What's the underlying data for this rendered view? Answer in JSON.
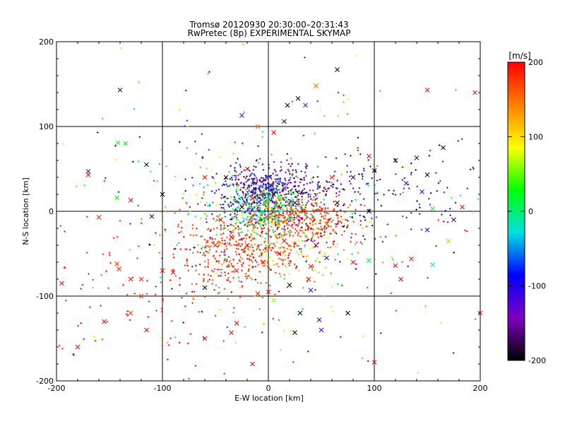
{
  "chart_data": {
    "type": "scatter",
    "title": "Tromsø 20120930 20:30:00–20:31:43",
    "subtitle": "RwPretec (8p) EXPERIMENTAL SKYMAP",
    "xlabel": "E-W location [km]",
    "ylabel": "N-S location [km]",
    "xlim": [
      -200,
      200
    ],
    "ylim": [
      -200,
      200
    ],
    "x_ticks": [
      -200,
      -100,
      0,
      100,
      200
    ],
    "y_ticks": [
      -200,
      -100,
      0,
      100,
      200
    ],
    "grid": true,
    "colorbar": {
      "label": "[m/s]",
      "range": [
        -200,
        200
      ],
      "ticks": [
        200,
        100,
        0,
        -100,
        -200
      ],
      "colors": [
        "#000000",
        "#8000c0",
        "#0000ff",
        "#00e0e0",
        "#00ff00",
        "#ffff00",
        "#ff8000",
        "#ff0000"
      ]
    },
    "series": [
      {
        "marker": "cross",
        "points": [
          [
            -140,
            143,
            -180
          ],
          [
            -115,
            55,
            -190
          ],
          [
            -142,
            81,
            20
          ],
          [
            -135,
            80,
            30
          ],
          [
            -170,
            47,
            -110
          ],
          [
            -170,
            43,
            200
          ],
          [
            -160,
            -7,
            190
          ],
          [
            -143,
            16,
            30
          ],
          [
            -130,
            13,
            200
          ],
          [
            -195,
            -85,
            200
          ],
          [
            -143,
            -62,
            180
          ],
          [
            -141,
            -68,
            190
          ],
          [
            -130,
            -80,
            200
          ],
          [
            -120,
            -80,
            190
          ],
          [
            -155,
            -130,
            200
          ],
          [
            -130,
            -120,
            180
          ],
          [
            -115,
            -140,
            200
          ],
          [
            -180,
            -160,
            200
          ],
          [
            -100,
            -70,
            200
          ],
          [
            -120,
            -100,
            180
          ],
          [
            -60,
            -90,
            -200
          ],
          [
            -60,
            -150,
            200
          ],
          [
            -30,
            -132,
            200
          ],
          [
            -35,
            -143,
            200
          ],
          [
            -15,
            -180,
            200
          ],
          [
            -90,
            -72,
            200
          ],
          [
            -110,
            -6,
            -200
          ],
          [
            -100,
            20,
            -200
          ],
          [
            -60,
            40,
            200
          ],
          [
            -40,
            40,
            -200
          ],
          [
            -20,
            50,
            200
          ],
          [
            -10,
            100,
            150
          ],
          [
            5,
            93,
            200
          ],
          [
            -25,
            113,
            -120
          ],
          [
            65,
            167,
            -200
          ],
          [
            45,
            148,
            150
          ],
          [
            28,
            133,
            -200
          ],
          [
            35,
            125,
            -150
          ],
          [
            18,
            125,
            -200
          ],
          [
            15,
            106,
            -200
          ],
          [
            30,
            -120,
            -200
          ],
          [
            25,
            -143,
            -200
          ],
          [
            50,
            -140,
            -120
          ],
          [
            48,
            -128,
            -90
          ],
          [
            75,
            -120,
            -200
          ],
          [
            100,
            -178,
            200
          ],
          [
            20,
            -87,
            -200
          ],
          [
            40,
            -93,
            -100
          ],
          [
            38,
            -80,
            200
          ],
          [
            95,
            -58,
            20
          ],
          [
            80,
            -60,
            200
          ],
          [
            120,
            -64,
            200
          ],
          [
            135,
            -56,
            200
          ],
          [
            125,
            -80,
            200
          ],
          [
            155,
            -63,
            -20
          ],
          [
            150,
            -22,
            -100
          ],
          [
            175,
            -10,
            -180
          ],
          [
            170,
            -35,
            60
          ],
          [
            183,
            5,
            200
          ],
          [
            165,
            75,
            -200
          ],
          [
            140,
            63,
            -180
          ],
          [
            120,
            60,
            -190
          ],
          [
            150,
            43,
            -200
          ],
          [
            145,
            23,
            -110
          ],
          [
            130,
            33,
            -110
          ],
          [
            100,
            48,
            -200
          ],
          [
            95,
            65,
            200
          ],
          [
            80,
            40,
            -190
          ],
          [
            60,
            40,
            190
          ],
          [
            65,
            10,
            -200
          ],
          [
            155,
            3,
            20
          ],
          [
            150,
            143,
            200
          ],
          [
            195,
            140,
            200
          ],
          [
            200,
            -120,
            200
          ],
          [
            95,
            0,
            -200
          ],
          [
            -25,
            5,
            -190
          ],
          [
            -15,
            15,
            200
          ],
          [
            5,
            20,
            -200
          ],
          [
            15,
            27,
            -120
          ],
          [
            25,
            10,
            -200
          ],
          [
            -5,
            -10,
            40
          ],
          [
            10,
            18,
            20
          ],
          [
            33,
            0,
            200
          ],
          [
            -45,
            -10,
            200
          ],
          [
            -35,
            -30,
            200
          ],
          [
            -50,
            -40,
            190
          ],
          [
            10,
            -50,
            200
          ],
          [
            -20,
            -40,
            200
          ],
          [
            45,
            -40,
            -110
          ],
          [
            15,
            -35,
            200
          ],
          [
            -5,
            -60,
            190
          ],
          [
            -30,
            -70,
            200
          ],
          [
            0,
            -95,
            200
          ],
          [
            5,
            -105,
            60
          ],
          [
            -10,
            -97,
            190
          ],
          [
            55,
            -55,
            -90
          ],
          [
            40,
            -65,
            200
          ]
        ]
      }
    ],
    "clusters": [
      {
        "cx": -5,
        "cy": 28,
        "sx": 18,
        "sy": 12,
        "n": 260,
        "vmin": -200,
        "vmax": -60
      },
      {
        "cx": 30,
        "cy": 30,
        "sx": 25,
        "sy": 10,
        "n": 120,
        "vmin": -200,
        "vmax": -120
      },
      {
        "cx": -15,
        "cy": 10,
        "sx": 22,
        "sy": 14,
        "n": 240,
        "vmin": -200,
        "vmax": 60
      },
      {
        "cx": 2,
        "cy": 0,
        "sx": 15,
        "sy": 12,
        "n": 260,
        "vmin": -80,
        "vmax": 120
      },
      {
        "cx": 35,
        "cy": -12,
        "sx": 22,
        "sy": 14,
        "n": 300,
        "vmin": 160,
        "vmax": 200
      },
      {
        "cx": -35,
        "cy": -45,
        "sx": 28,
        "sy": 22,
        "n": 320,
        "vmin": 150,
        "vmax": 200
      },
      {
        "cx": 20,
        "cy": -45,
        "sx": 22,
        "sy": 18,
        "n": 150,
        "vmin": 60,
        "vmax": 200
      },
      {
        "cx": -10,
        "cy": -20,
        "sx": 45,
        "sy": 40,
        "n": 260,
        "vmin": -200,
        "vmax": 200
      },
      {
        "cx": 100,
        "cy": 20,
        "sx": 50,
        "sy": 28,
        "n": 140,
        "vmin": -200,
        "vmax": -60
      },
      {
        "cx": 0,
        "cy": 0,
        "sx": 110,
        "sy": 95,
        "n": 240,
        "vmin": -200,
        "vmax": 200
      },
      {
        "cx": -120,
        "cy": -100,
        "sx": 45,
        "sy": 45,
        "n": 90,
        "vmin": 180,
        "vmax": 200
      }
    ]
  }
}
